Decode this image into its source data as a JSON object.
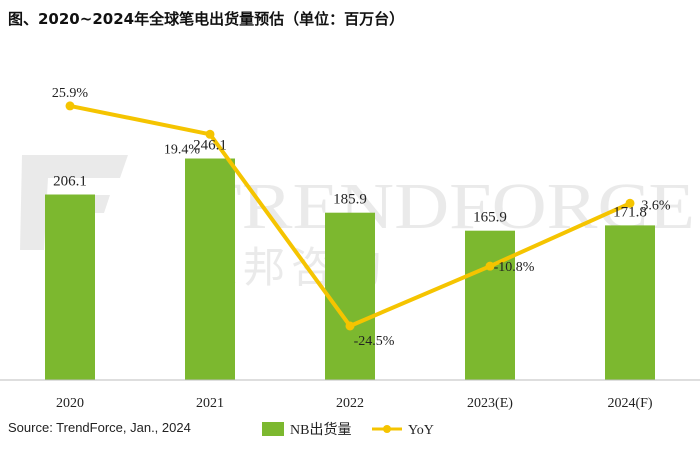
{
  "title": "图、2020~2024年全球笔电出货量预估（单位：百万台）",
  "source": "Source: TrendForce, Jan., 2024",
  "watermark": {
    "text": "TRENDFORCE",
    "text_cn": "集邦咨询"
  },
  "chart_data": {
    "type": "bar",
    "categories": [
      "2020",
      "2021",
      "2022",
      "2023(E)",
      "2024(F)"
    ],
    "series": [
      {
        "name": "NB出货量",
        "type": "bar",
        "values": [
          206.1,
          246.1,
          185.9,
          165.9,
          171.8
        ],
        "labels": [
          "206.1",
          "246.1",
          "185.9",
          "165.9",
          "171.8"
        ],
        "color": "#7cb82f",
        "axis": "left"
      },
      {
        "name": "YoY",
        "type": "line",
        "values": [
          25.9,
          19.4,
          -24.5,
          -10.8,
          3.6
        ],
        "labels": [
          "25.9%",
          "19.4%",
          "-24.5%",
          "-10.8%",
          "3.6%"
        ],
        "color": "#f5c400",
        "axis": "right"
      }
    ],
    "ylim": [
      0,
      300
    ],
    "y2lim": [
      -30,
      30
    ],
    "grid": false,
    "legend": "bottom"
  }
}
